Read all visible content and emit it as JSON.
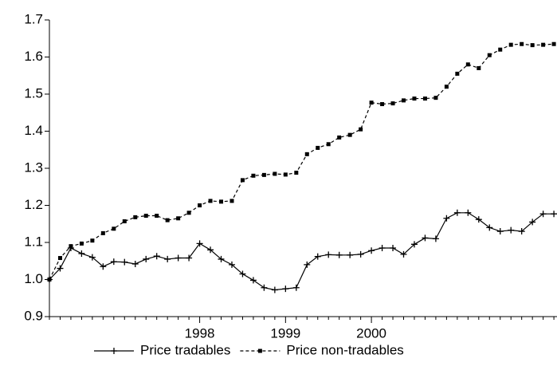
{
  "chart_data": {
    "type": "line",
    "categories": [
      null,
      null,
      null,
      null,
      null,
      null,
      null,
      null,
      null,
      null,
      null,
      null,
      null,
      null,
      "1998",
      null,
      null,
      null,
      null,
      null,
      null,
      null,
      "1999",
      null,
      null,
      null,
      null,
      null,
      null,
      null,
      "2000",
      null,
      null,
      null,
      null,
      null,
      null,
      null,
      null,
      null,
      null,
      null,
      null,
      null,
      null,
      null,
      null,
      null
    ],
    "series": [
      {
        "name": "Price tradables",
        "color": "#000000",
        "marker": "plus",
        "dash": false,
        "values": [
          1.0,
          1.03,
          1.085,
          1.07,
          1.06,
          1.035,
          1.048,
          1.047,
          1.042,
          1.055,
          1.063,
          1.055,
          1.058,
          1.058,
          1.097,
          1.08,
          1.055,
          1.04,
          1.015,
          0.998,
          0.978,
          0.972,
          0.975,
          0.978,
          1.04,
          1.062,
          1.067,
          1.066,
          1.066,
          1.068,
          1.078,
          1.085,
          1.085,
          1.068,
          1.095,
          1.112,
          1.11,
          1.165,
          1.18,
          1.18,
          1.162,
          1.14,
          1.13,
          1.133,
          1.13,
          1.155,
          1.177,
          1.177
        ]
      },
      {
        "name": "Price non-tradables",
        "color": "#000000",
        "marker": "square",
        "dash": true,
        "values": [
          1.0,
          1.058,
          1.09,
          1.097,
          1.105,
          1.125,
          1.137,
          1.157,
          1.168,
          1.172,
          1.172,
          1.16,
          1.165,
          1.18,
          1.2,
          1.212,
          1.21,
          1.212,
          1.268,
          1.28,
          1.282,
          1.285,
          1.283,
          1.288,
          1.338,
          1.355,
          1.365,
          1.383,
          1.39,
          1.405,
          1.477,
          1.473,
          1.475,
          1.483,
          1.488,
          1.488,
          1.49,
          1.52,
          1.555,
          1.58,
          1.57,
          1.605,
          1.62,
          1.633,
          1.635,
          1.632,
          1.633,
          1.635
        ]
      }
    ],
    "ylim": [
      0.9,
      1.7
    ],
    "yticks": [
      {
        "value": 0.9,
        "label": "0.9"
      },
      {
        "value": 1.0,
        "label": "1.0"
      },
      {
        "value": 1.1,
        "label": "1.1"
      },
      {
        "value": 1.2,
        "label": "1.2"
      },
      {
        "value": 1.3,
        "label": "1.3"
      },
      {
        "value": 1.4,
        "label": "1.4"
      },
      {
        "value": 1.5,
        "label": "1.5"
      },
      {
        "value": 1.6,
        "label": "1.6"
      },
      {
        "value": 1.7,
        "label": "1.7"
      }
    ],
    "grid": false,
    "legend": "bottom"
  }
}
